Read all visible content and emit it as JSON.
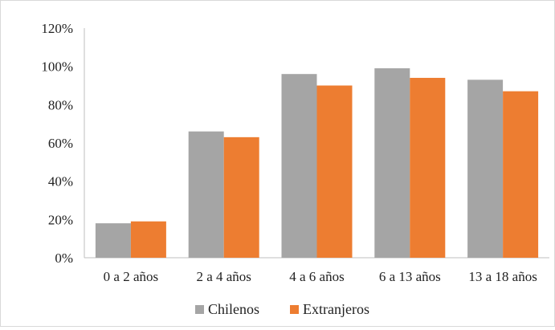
{
  "chart_data": {
    "type": "bar",
    "categories": [
      "0 a 2 años",
      "2 a 4 años",
      "4 a 6 años",
      "6 a 13 años",
      "13 a 18 años"
    ],
    "series": [
      {
        "name": "Chilenos",
        "values": [
          18,
          66,
          96,
          99,
          93
        ],
        "color": "#a5a5a5"
      },
      {
        "name": "Extranjeros",
        "values": [
          19,
          63,
          90,
          94,
          87
        ],
        "color": "#ed7d31"
      }
    ],
    "y_ticks": [
      "0%",
      "20%",
      "40%",
      "60%",
      "80%",
      "100%",
      "120%"
    ],
    "ylim": [
      0,
      120
    ],
    "y_unit": "%",
    "grid": false,
    "legend": "bottom-center",
    "title": "",
    "xlabel": "",
    "ylabel": ""
  }
}
